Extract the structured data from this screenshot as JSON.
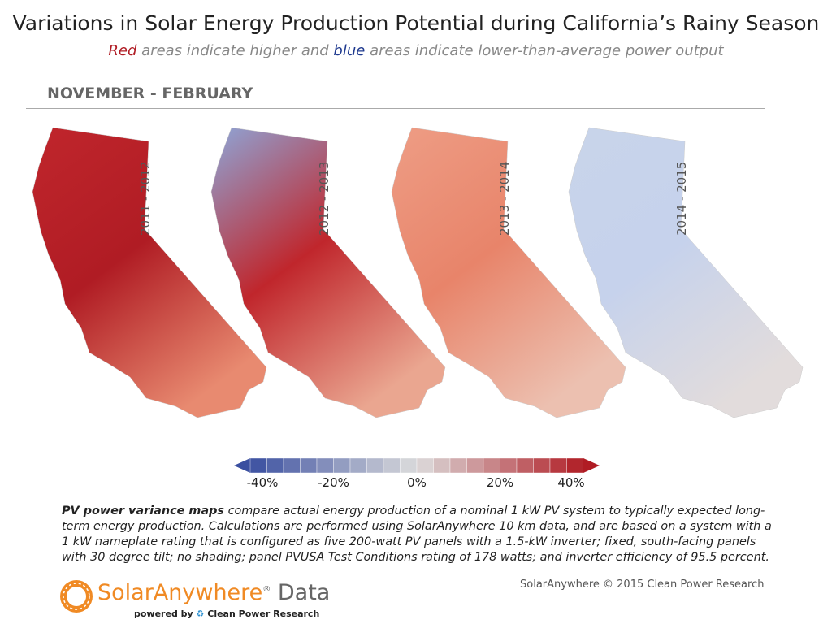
{
  "title": "Variations in Solar Energy Production Potential during California’s Rainy Season",
  "subtitle": {
    "red": "Red",
    "part1": " areas indicate higher and ",
    "blue": "blue",
    "part2": " areas indicate lower-than-average power output"
  },
  "season": "NOVEMBER - FEBRUARY",
  "maps": [
    {
      "label": "2011 - 2012",
      "north": "#c0262c",
      "center": "#b01c24",
      "south": "#e88a70"
    },
    {
      "label": "2012 - 2013",
      "north": "#8ea6d8",
      "center": "#c0262c",
      "south": "#eaa690"
    },
    {
      "label": "2013 - 2014",
      "north": "#ee9d85",
      "center": "#e8846a",
      "south": "#ecc0b0"
    },
    {
      "label": "2014 - 2015",
      "north": "#c8d4ea",
      "center": "#c6d2ec",
      "south": "#e2dcdc"
    }
  ],
  "legend": {
    "min": -40,
    "max": 40,
    "step": 4,
    "ticks": [
      "-40%",
      "-20%",
      "0%",
      "20%",
      "40%"
    ],
    "low_color": "#3a4fa0",
    "mid_color": "#dcdcdc",
    "high_color": "#b01c24"
  },
  "description": {
    "bold": "PV power variance maps",
    "text": " compare actual energy production of a nominal 1 kW PV system to typically expected long-term energy production. Calculations are performed using SolarAnywhere 10 km data, and are based on a system with a 1 kW nameplate rating that is configured as five 200-watt PV panels with a 1.5-kW inverter; fixed, south-facing panels with 30 degree tilt; no shading; panel PVUSA Test Conditions rating of 178 watts; and inverter efficiency of 95.5 percent."
  },
  "footer": {
    "brand": "SolarAnywhere",
    "reg": "®",
    "data": " Data",
    "powered": "powered by",
    "cpr": "Clean Power Research",
    "copyright": "SolarAnywhere © 2015 Clean Power Research"
  }
}
